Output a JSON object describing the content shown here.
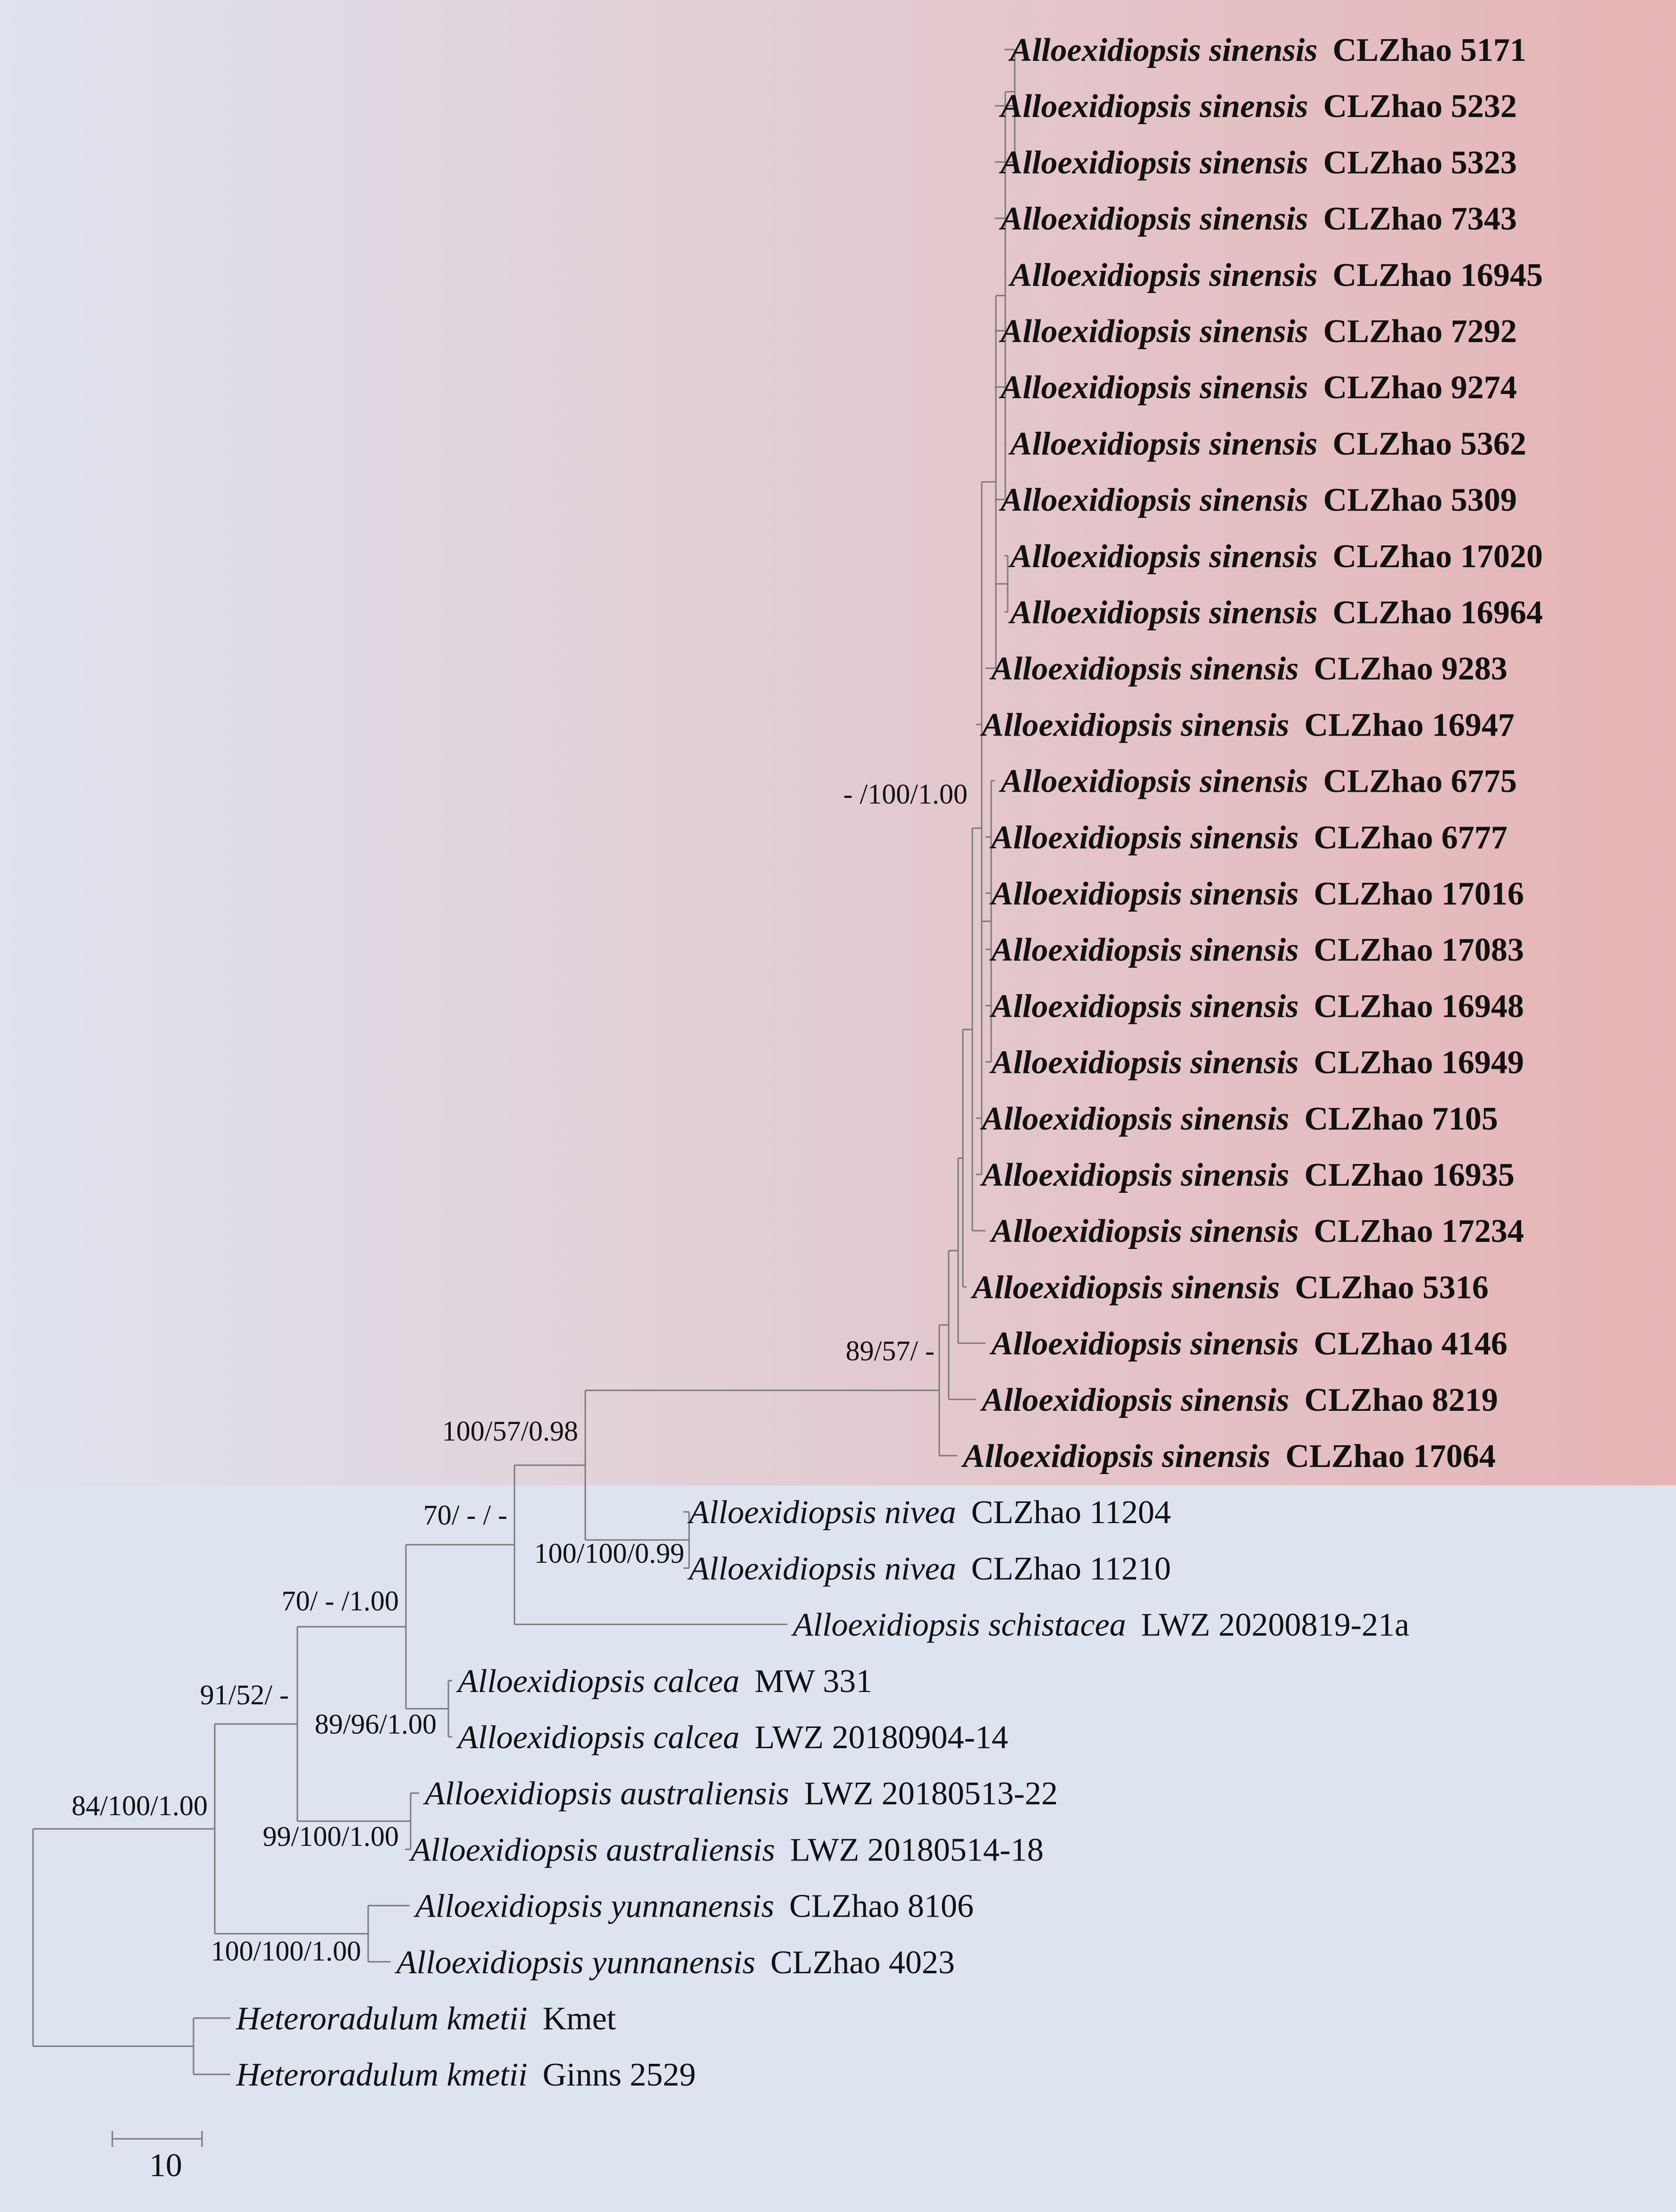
{
  "figure": {
    "type": "phylogenetic-tree",
    "colors": {
      "background": "#dde3ef",
      "highlight_gradient_start": "#dfe3ef",
      "highlight_gradient_end": "#e6b4b5",
      "branch": "#7a7a7a",
      "text": "#111111"
    }
  },
  "taxa": [
    {
      "genus_species": "Alloexidiopsis sinensis",
      "voucher": "CLZhao 5171",
      "highlight": true
    },
    {
      "genus_species": "Alloexidiopsis sinensis",
      "voucher": "CLZhao 5232",
      "highlight": true
    },
    {
      "genus_species": "Alloexidiopsis sinensis",
      "voucher": "CLZhao 5323",
      "highlight": true
    },
    {
      "genus_species": "Alloexidiopsis sinensis",
      "voucher": "CLZhao 7343",
      "highlight": true
    },
    {
      "genus_species": "Alloexidiopsis sinensis",
      "voucher": "CLZhao 16945",
      "highlight": true
    },
    {
      "genus_species": "Alloexidiopsis sinensis",
      "voucher": "CLZhao 7292",
      "highlight": true
    },
    {
      "genus_species": "Alloexidiopsis sinensis",
      "voucher": "CLZhao 9274",
      "highlight": true
    },
    {
      "genus_species": "Alloexidiopsis sinensis",
      "voucher": "CLZhao 5362",
      "highlight": true
    },
    {
      "genus_species": "Alloexidiopsis sinensis",
      "voucher": "CLZhao 5309",
      "highlight": true
    },
    {
      "genus_species": "Alloexidiopsis sinensis",
      "voucher": "CLZhao 17020",
      "highlight": true
    },
    {
      "genus_species": "Alloexidiopsis sinensis",
      "voucher": "CLZhao 16964",
      "highlight": true
    },
    {
      "genus_species": "Alloexidiopsis sinensis",
      "voucher": "CLZhao 9283",
      "highlight": true
    },
    {
      "genus_species": "Alloexidiopsis sinensis",
      "voucher": "CLZhao 16947",
      "highlight": true
    },
    {
      "genus_species": "Alloexidiopsis sinensis",
      "voucher": "CLZhao 6775",
      "highlight": true
    },
    {
      "genus_species": "Alloexidiopsis sinensis",
      "voucher": "CLZhao 6777",
      "highlight": true
    },
    {
      "genus_species": "Alloexidiopsis sinensis",
      "voucher": "CLZhao 17016",
      "highlight": true
    },
    {
      "genus_species": "Alloexidiopsis sinensis",
      "voucher": "CLZhao 17083",
      "highlight": true
    },
    {
      "genus_species": "Alloexidiopsis sinensis",
      "voucher": "CLZhao 16948",
      "highlight": true
    },
    {
      "genus_species": "Alloexidiopsis sinensis",
      "voucher": "CLZhao 16949",
      "highlight": true
    },
    {
      "genus_species": "Alloexidiopsis sinensis",
      "voucher": "CLZhao 7105",
      "highlight": true
    },
    {
      "genus_species": "Alloexidiopsis sinensis",
      "voucher": "CLZhao 16935",
      "highlight": true
    },
    {
      "genus_species": "Alloexidiopsis sinensis",
      "voucher": "CLZhao 17234",
      "highlight": true
    },
    {
      "genus_species": "Alloexidiopsis sinensis",
      "voucher": "CLZhao 5316",
      "highlight": true
    },
    {
      "genus_species": "Alloexidiopsis sinensis",
      "voucher": "CLZhao 4146",
      "highlight": true
    },
    {
      "genus_species": "Alloexidiopsis sinensis",
      "voucher": "CLZhao 8219",
      "highlight": true
    },
    {
      "genus_species": "Alloexidiopsis sinensis",
      "voucher": "CLZhao 17064",
      "highlight": true
    },
    {
      "genus_species": "Alloexidiopsis nivea",
      "voucher": "CLZhao 11204",
      "highlight": false
    },
    {
      "genus_species": "Alloexidiopsis nivea",
      "voucher": "CLZhao 11210",
      "highlight": false
    },
    {
      "genus_species": "Alloexidiopsis schistacea",
      "voucher": "LWZ 20200819-21a",
      "highlight": false
    },
    {
      "genus_species": "Alloexidiopsis calcea",
      "voucher": "MW 331",
      "highlight": false
    },
    {
      "genus_species": "Alloexidiopsis calcea",
      "voucher": "LWZ 20180904-14",
      "highlight": false
    },
    {
      "genus_species": "Alloexidiopsis australiensis",
      "voucher": "LWZ 20180513-22",
      "highlight": false
    },
    {
      "genus_species": "Alloexidiopsis australiensis",
      "voucher": "LWZ 20180514-18",
      "highlight": false
    },
    {
      "genus_species": "Alloexidiopsis yunnanensis",
      "voucher": "CLZhao 8106",
      "highlight": false
    },
    {
      "genus_species": "Alloexidiopsis yunnanensis",
      "voucher": "CLZhao 4023",
      "highlight": false
    },
    {
      "genus_species": "Heteroradulum kmetii",
      "voucher": "Kmet",
      "highlight": false
    },
    {
      "genus_species": "Heteroradulum kmetii",
      "voucher": "Ginns 2529",
      "highlight": false
    }
  ],
  "supports": [
    {
      "node": "sinensis-crown",
      "text": "- /100/1.00"
    },
    {
      "node": "sinensis-stem",
      "text": "89/57/ -"
    },
    {
      "node": "sinensis-nivea",
      "text": "100/57/0.98"
    },
    {
      "node": "nivea",
      "text": "100/100/0.99"
    },
    {
      "node": "with-schistacea",
      "text": "70/ - / -"
    },
    {
      "node": "with-calcea",
      "text": "70/ - /1.00"
    },
    {
      "node": "calcea",
      "text": "89/96/1.00"
    },
    {
      "node": "with-australiensis",
      "text": "91/52/ -"
    },
    {
      "node": "australiensis",
      "text": "99/100/1.00"
    },
    {
      "node": "alloexidiopsis",
      "text": "84/100/1.00"
    },
    {
      "node": "yunnanensis",
      "text": "100/100/1.00"
    }
  ],
  "scale_bar": {
    "label": "10",
    "value": 10
  }
}
